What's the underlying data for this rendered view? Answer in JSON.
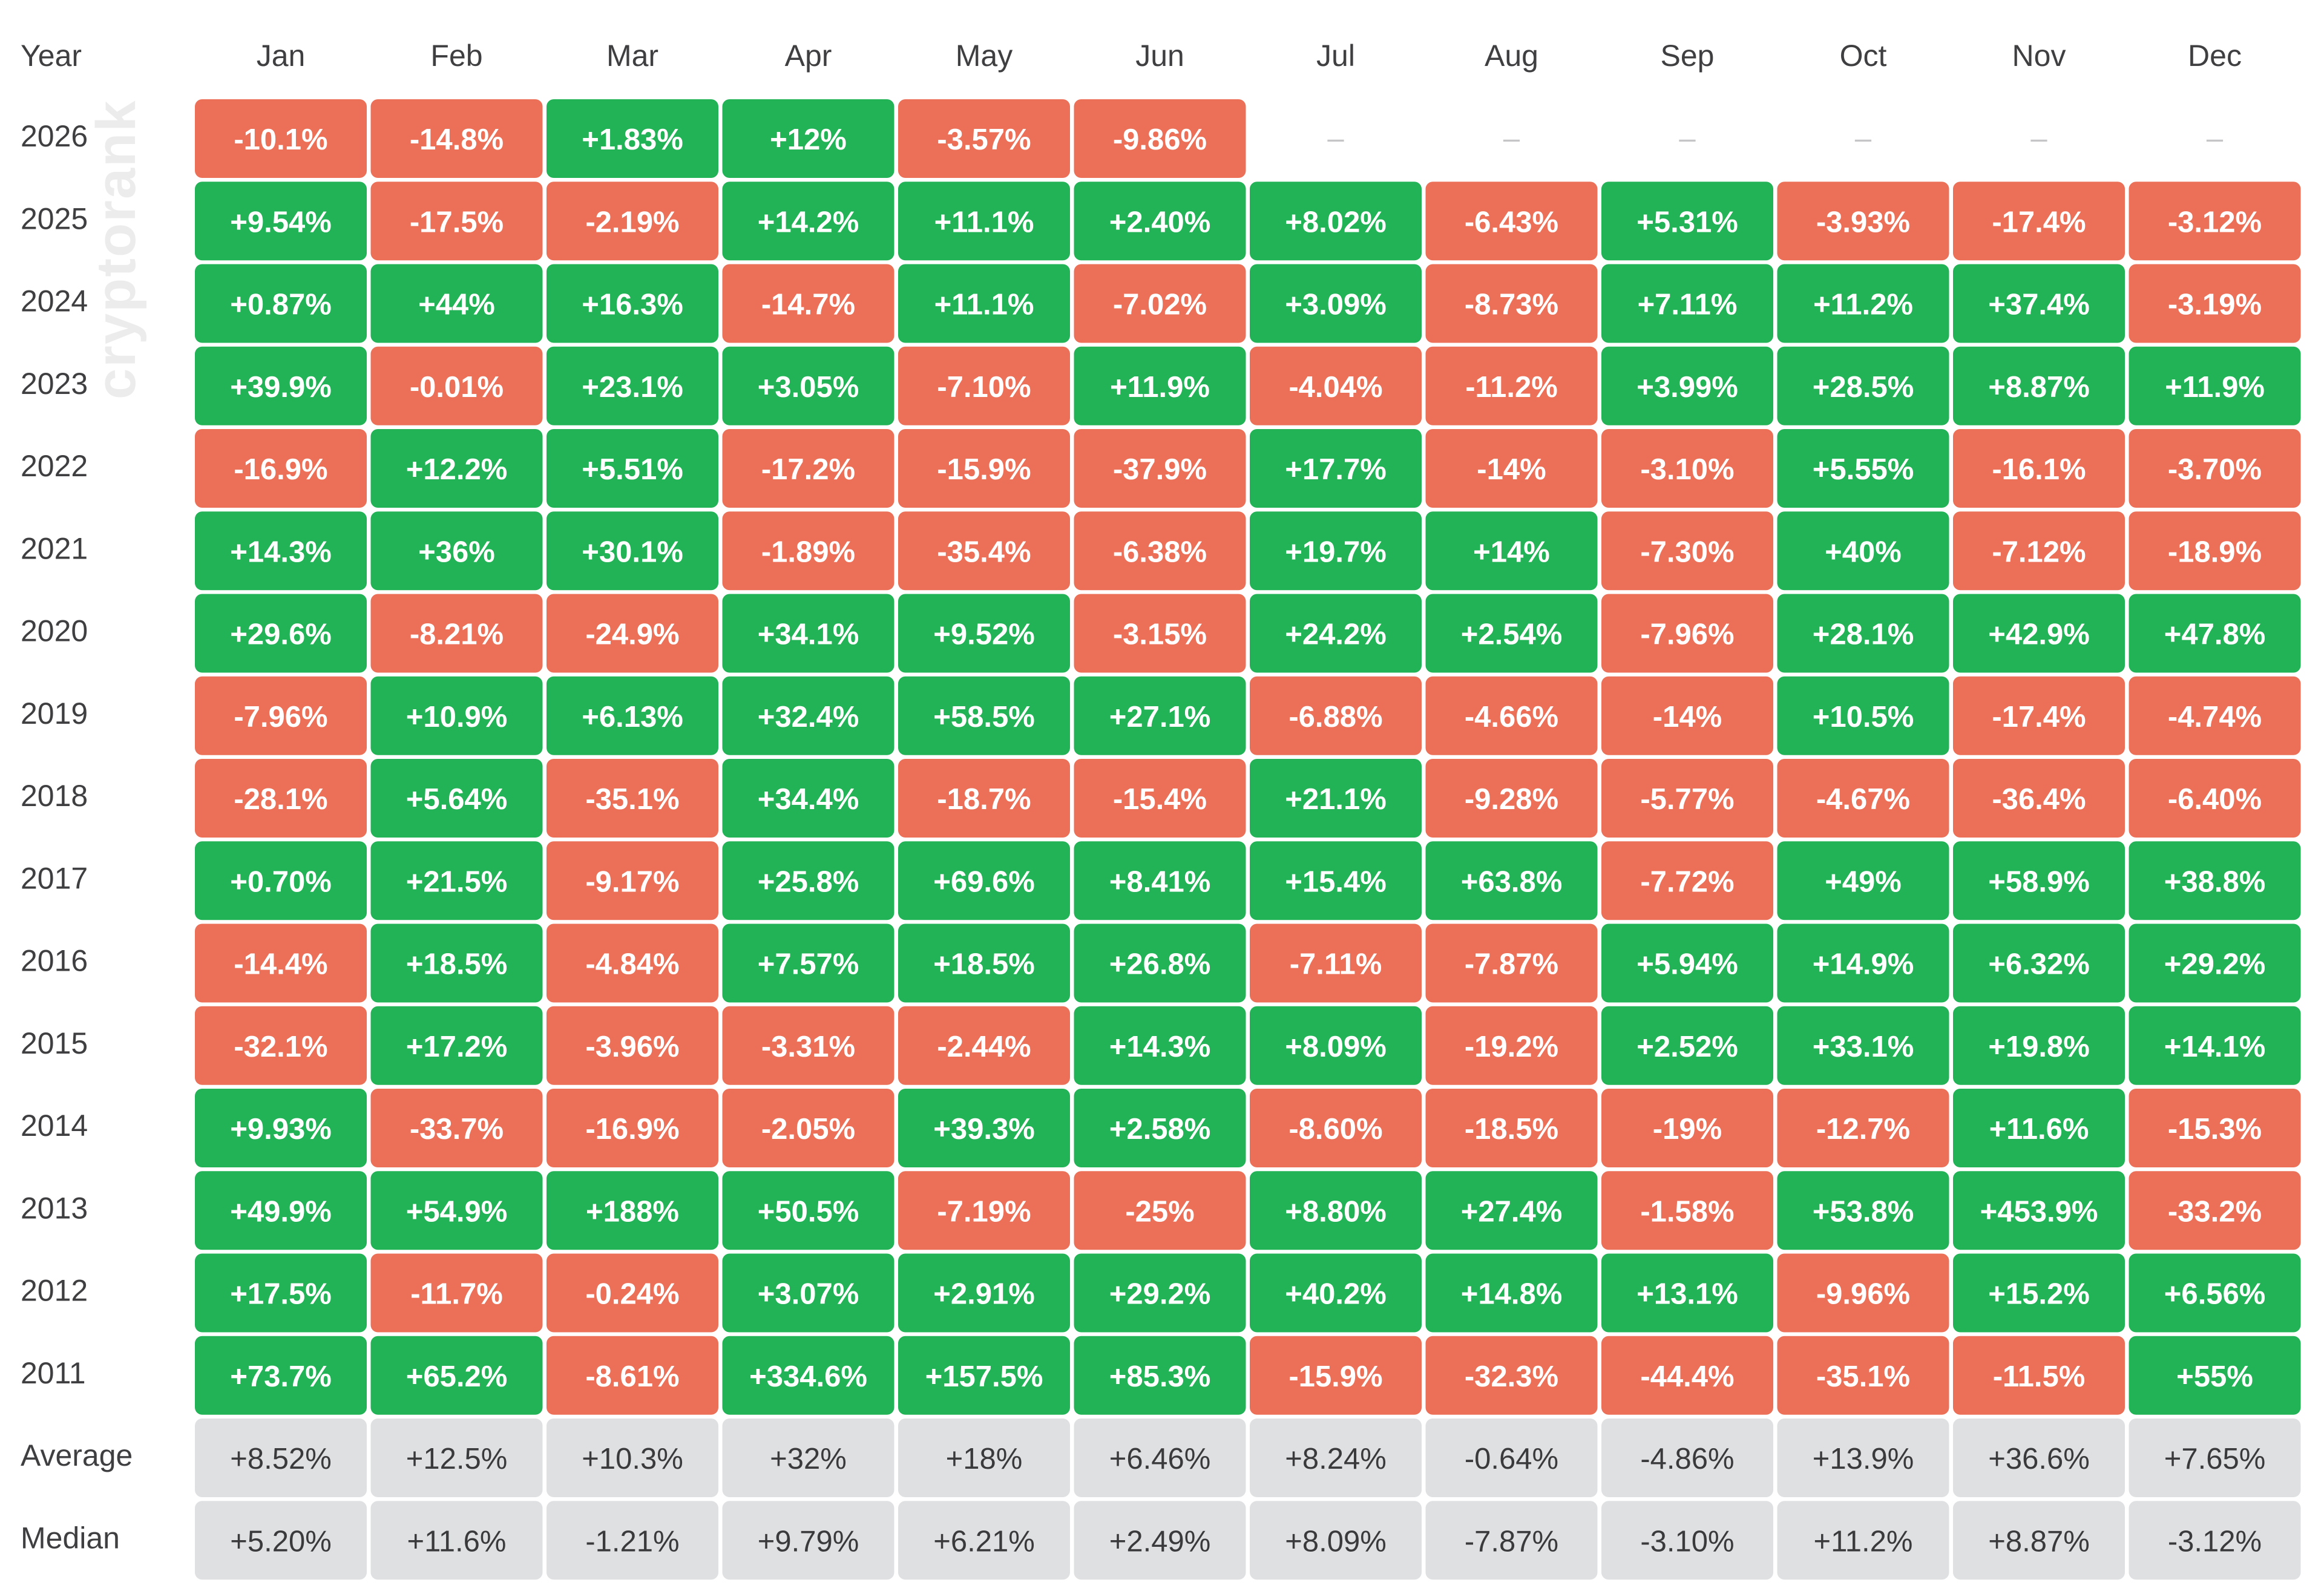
{
  "watermark": "cryptorank",
  "colors": {
    "positive": "#22b357",
    "negative": "#ec7058",
    "summary_bg": "#dfe0e2",
    "cell_text": "#ffffff",
    "summary_text": "#3a3a3c",
    "label_text": "#3f3f41",
    "empty_dash": "#c5c5c7"
  },
  "chart_data": {
    "type": "heatmap",
    "corner_label": "Year",
    "months": [
      "Jan",
      "Feb",
      "Mar",
      "Apr",
      "May",
      "Jun",
      "Jul",
      "Aug",
      "Sep",
      "Oct",
      "Nov",
      "Dec"
    ],
    "empty_marker": "–",
    "rows": [
      {
        "year": "2026",
        "values": [
          "-10.1%",
          "-14.8%",
          "+1.83%",
          "+12%",
          "-3.57%",
          "-9.86%",
          null,
          null,
          null,
          null,
          null,
          null
        ]
      },
      {
        "year": "2025",
        "values": [
          "+9.54%",
          "-17.5%",
          "-2.19%",
          "+14.2%",
          "+11.1%",
          "+2.40%",
          "+8.02%",
          "-6.43%",
          "+5.31%",
          "-3.93%",
          "-17.4%",
          "-3.12%"
        ]
      },
      {
        "year": "2024",
        "values": [
          "+0.87%",
          "+44%",
          "+16.3%",
          "-14.7%",
          "+11.1%",
          "-7.02%",
          "+3.09%",
          "-8.73%",
          "+7.11%",
          "+11.2%",
          "+37.4%",
          "-3.19%"
        ]
      },
      {
        "year": "2023",
        "values": [
          "+39.9%",
          "-0.01%",
          "+23.1%",
          "+3.05%",
          "-7.10%",
          "+11.9%",
          "-4.04%",
          "-11.2%",
          "+3.99%",
          "+28.5%",
          "+8.87%",
          "+11.9%"
        ]
      },
      {
        "year": "2022",
        "values": [
          "-16.9%",
          "+12.2%",
          "+5.51%",
          "-17.2%",
          "-15.9%",
          "-37.9%",
          "+17.7%",
          "-14%",
          "-3.10%",
          "+5.55%",
          "-16.1%",
          "-3.70%"
        ]
      },
      {
        "year": "2021",
        "values": [
          "+14.3%",
          "+36%",
          "+30.1%",
          "-1.89%",
          "-35.4%",
          "-6.38%",
          "+19.7%",
          "+14%",
          "-7.30%",
          "+40%",
          "-7.12%",
          "-18.9%"
        ]
      },
      {
        "year": "2020",
        "values": [
          "+29.6%",
          "-8.21%",
          "-24.9%",
          "+34.1%",
          "+9.52%",
          "-3.15%",
          "+24.2%",
          "+2.54%",
          "-7.96%",
          "+28.1%",
          "+42.9%",
          "+47.8%"
        ]
      },
      {
        "year": "2019",
        "values": [
          "-7.96%",
          "+10.9%",
          "+6.13%",
          "+32.4%",
          "+58.5%",
          "+27.1%",
          "-6.88%",
          "-4.66%",
          "-14%",
          "+10.5%",
          "-17.4%",
          "-4.74%"
        ]
      },
      {
        "year": "2018",
        "values": [
          "-28.1%",
          "+5.64%",
          "-35.1%",
          "+34.4%",
          "-18.7%",
          "-15.4%",
          "+21.1%",
          "-9.28%",
          "-5.77%",
          "-4.67%",
          "-36.4%",
          "-6.40%"
        ]
      },
      {
        "year": "2017",
        "values": [
          "+0.70%",
          "+21.5%",
          "-9.17%",
          "+25.8%",
          "+69.6%",
          "+8.41%",
          "+15.4%",
          "+63.8%",
          "-7.72%",
          "+49%",
          "+58.9%",
          "+38.8%"
        ]
      },
      {
        "year": "2016",
        "values": [
          "-14.4%",
          "+18.5%",
          "-4.84%",
          "+7.57%",
          "+18.5%",
          "+26.8%",
          "-7.11%",
          "-7.87%",
          "+5.94%",
          "+14.9%",
          "+6.32%",
          "+29.2%"
        ]
      },
      {
        "year": "2015",
        "values": [
          "-32.1%",
          "+17.2%",
          "-3.96%",
          "-3.31%",
          "-2.44%",
          "+14.3%",
          "+8.09%",
          "-19.2%",
          "+2.52%",
          "+33.1%",
          "+19.8%",
          "+14.1%"
        ]
      },
      {
        "year": "2014",
        "values": [
          "+9.93%",
          "-33.7%",
          "-16.9%",
          "-2.05%",
          "+39.3%",
          "+2.58%",
          "-8.60%",
          "-18.5%",
          "-19%",
          "-12.7%",
          "+11.6%",
          "-15.3%"
        ]
      },
      {
        "year": "2013",
        "values": [
          "+49.9%",
          "+54.9%",
          "+188%",
          "+50.5%",
          "-7.19%",
          "-25%",
          "+8.80%",
          "+27.4%",
          "-1.58%",
          "+53.8%",
          "+453.9%",
          "-33.2%"
        ]
      },
      {
        "year": "2012",
        "values": [
          "+17.5%",
          "-11.7%",
          "-0.24%",
          "+3.07%",
          "+2.91%",
          "+29.2%",
          "+40.2%",
          "+14.8%",
          "+13.1%",
          "-9.96%",
          "+15.2%",
          "+6.56%"
        ]
      },
      {
        "year": "2011",
        "values": [
          "+73.7%",
          "+65.2%",
          "-8.61%",
          "+334.6%",
          "+157.5%",
          "+85.3%",
          "-15.9%",
          "-32.3%",
          "-44.4%",
          "-35.1%",
          "-11.5%",
          "+55%"
        ]
      }
    ],
    "summary": [
      {
        "label": "Average",
        "values": [
          "+8.52%",
          "+12.5%",
          "+10.3%",
          "+32%",
          "+18%",
          "+6.46%",
          "+8.24%",
          "-0.64%",
          "-4.86%",
          "+13.9%",
          "+36.6%",
          "+7.65%"
        ]
      },
      {
        "label": "Median",
        "values": [
          "+5.20%",
          "+11.6%",
          "-1.21%",
          "+9.79%",
          "+6.21%",
          "+2.49%",
          "+8.09%",
          "-7.87%",
          "-3.10%",
          "+11.2%",
          "+8.87%",
          "-3.12%"
        ]
      }
    ]
  }
}
